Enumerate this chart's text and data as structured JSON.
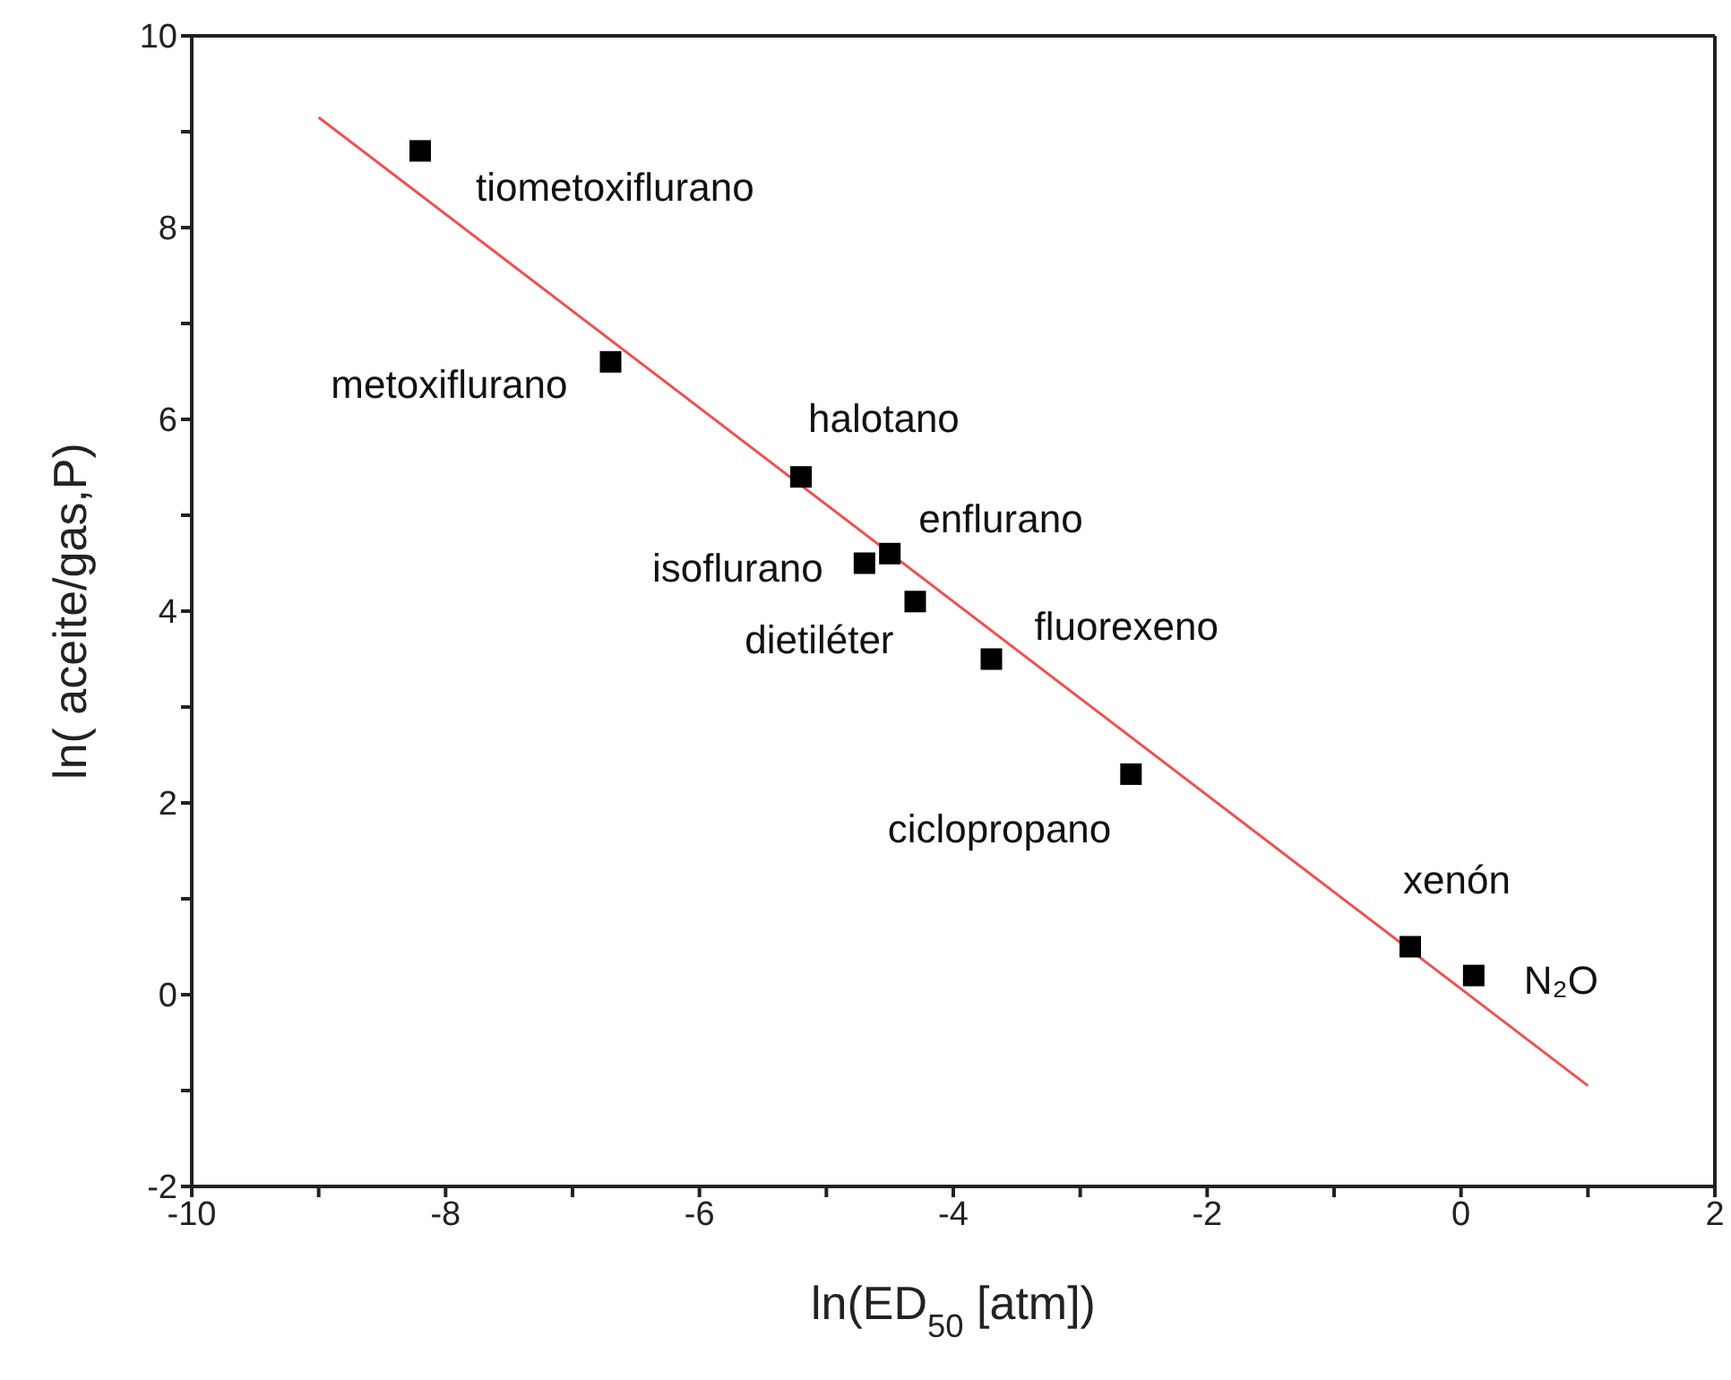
{
  "chart_data": {
    "type": "scatter",
    "xlabel": "ln(ED$_{50}$ [atm])",
    "ylabel": "ln( aceite/gas,P)",
    "xlim": [
      -10,
      2
    ],
    "xticks": [
      -10,
      {
        "value": -9,
        "label": null
      },
      -8,
      {
        "value": -7,
        "label": null
      },
      -6,
      {
        "value": -5,
        "label": null
      },
      -4,
      {
        "value": -3,
        "label": null
      },
      -2,
      {
        "value": -1,
        "label": null
      },
      0,
      {
        "value": 1,
        "label": null
      },
      2
    ],
    "ylim": [
      -2,
      10
    ],
    "yticks": [
      -2,
      {
        "value": -1,
        "label": null
      },
      0,
      {
        "value": 1,
        "label": null
      },
      2,
      {
        "value": 3,
        "label": null
      },
      4,
      {
        "value": 5,
        "label": null
      },
      6,
      {
        "value": 7,
        "label": null
      },
      8,
      {
        "value": 9,
        "label": null
      },
      10
    ],
    "grid": false,
    "legend": false,
    "series": [
      {
        "color": "#000000",
        "marker": "square",
        "x": [
          -8.2,
          -6.7,
          -5.2,
          -4.5,
          -4.7,
          -4.3,
          -3.7,
          -2.6,
          -0.4,
          0.1
        ],
        "values": [
          8.8,
          6.6,
          5.4,
          4.6,
          4.5,
          4.1,
          3.5,
          2.3,
          0.5,
          0.2
        ]
      },
      {
        "type": "line",
        "color": "#f05050",
        "x": [
          -9,
          1
        ],
        "values": [
          9.15,
          -0.95
        ]
      }
    ],
    "annotations": [
      {
        "text": "tiometoxiflurano",
        "x": -8.2,
        "y": 8.8
      },
      {
        "text": "metoxiflurano",
        "x": -6.7,
        "y": 6.6
      },
      {
        "text": "halotano",
        "x": -5.2,
        "y": 5.4
      },
      {
        "text": "enflurano",
        "x": -4.5,
        "y": 4.6
      },
      {
        "text": "isoflurano",
        "x": -4.7,
        "y": 4.5
      },
      {
        "text": "dietiléter",
        "x": -4.3,
        "y": 4.1
      },
      {
        "text": "fluorexeno",
        "x": -3.7,
        "y": 3.5
      },
      {
        "text": "ciclopropano",
        "x": -2.6,
        "y": 2.3
      },
      {
        "text": "xenón",
        "x": -0.4,
        "y": 0.5
      },
      {
        "text": "N₂O",
        "x": 0.1,
        "y": 0.2
      }
    ]
  }
}
